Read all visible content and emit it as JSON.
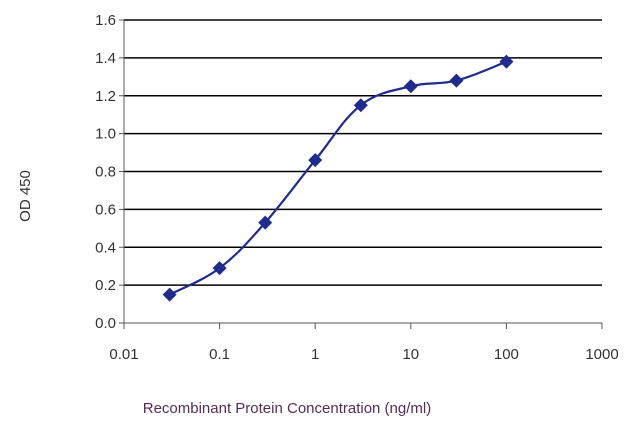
{
  "colors": {
    "series": "#1f2b8f",
    "grid": "#000000",
    "axis": "#555555",
    "xlabel": "#5b2a5a",
    "tick_text": "#333333"
  },
  "chart_data": {
    "type": "scatter",
    "title": "",
    "xlabel": "Recombinant Protein Concentration (ng/ml)",
    "ylabel": "OD 450",
    "x_scale": "log",
    "xlim": [
      0.01,
      1000
    ],
    "ylim": [
      0.0,
      1.6
    ],
    "x_ticks": [
      "0.01",
      "0.1",
      "1",
      "10",
      "100",
      "1000"
    ],
    "y_ticks": [
      "0.0",
      "0.2",
      "0.4",
      "0.6",
      "0.8",
      "1.0",
      "1.2",
      "1.4",
      "1.6"
    ],
    "grid": "horizontal",
    "legend": "none",
    "marker": "diamond",
    "line": "smooth",
    "series": [
      {
        "x": [
          0.03,
          0.1,
          0.3,
          1,
          3,
          10,
          30,
          100
        ],
        "y": [
          0.15,
          0.29,
          0.53,
          0.86,
          1.15,
          1.25,
          1.28,
          1.38
        ]
      }
    ]
  }
}
